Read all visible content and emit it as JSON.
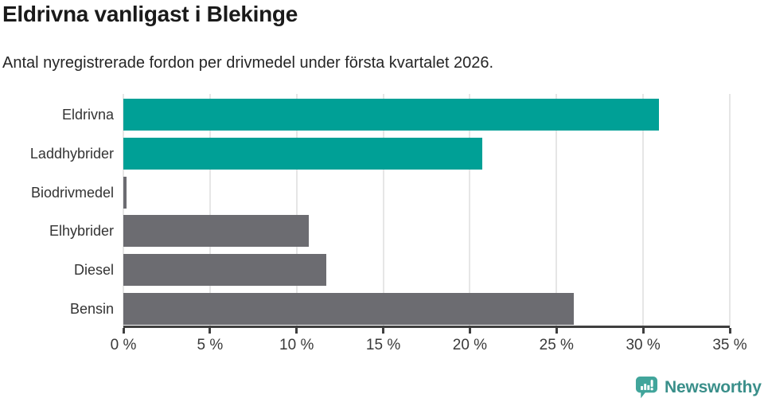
{
  "header": {
    "title": "Eldrivna vanligast i Blekinge",
    "subtitle": "Antal nyregistrerade fordon per drivmedel under första kvartalet 2026."
  },
  "chart_data": {
    "type": "bar",
    "orientation": "horizontal",
    "title": "Eldrivna vanligast i Blekinge",
    "subtitle": "Antal nyregistrerade fordon per drivmedel under första kvartalet 2026.",
    "categories": [
      "Eldrivna",
      "Laddhybrider",
      "Biodrivmedel",
      "Elhybrider",
      "Diesel",
      "Bensin"
    ],
    "values": [
      30.9,
      20.7,
      0.2,
      10.7,
      11.7,
      26.0
    ],
    "unit": "%",
    "colors": [
      "#00a096",
      "#00a096",
      "#6c6c71",
      "#6c6c71",
      "#6c6c71",
      "#6c6c71"
    ],
    "highlight_color": "#00a096",
    "default_color": "#6c6c71",
    "xlabel": "",
    "ylabel": "",
    "xlim": [
      0,
      35
    ],
    "x_ticks": [
      0,
      5,
      10,
      15,
      20,
      25,
      30,
      35
    ],
    "x_tick_labels": [
      "0 %",
      "5 %",
      "10 %",
      "15 %",
      "20 %",
      "25 %",
      "30 %",
      "35 %"
    ],
    "grid": true,
    "legend": false
  },
  "footer": {
    "brand": "Newsworthy",
    "brand_text_color": "#3a8f8a",
    "brand_icon_color": "#41a59b"
  }
}
